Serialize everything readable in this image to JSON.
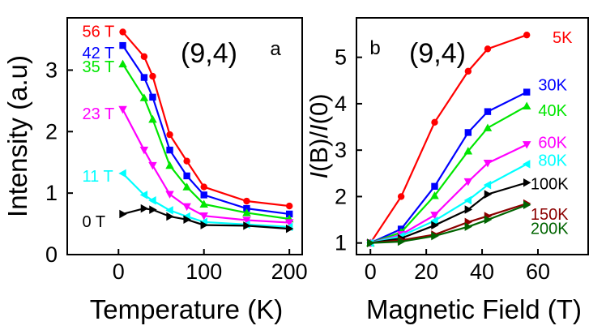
{
  "chart_data": [
    {
      "type": "line",
      "panel_label": "a",
      "annotation": "(9,4)",
      "xlabel": "Temperature (K)",
      "ylabel": "Intensity (a.u)",
      "xlim": [
        -60,
        215
      ],
      "ylim": [
        0,
        3.85
      ],
      "xticks": [
        "0",
        "100",
        "200"
      ],
      "xtick_values": [
        0,
        100,
        200
      ],
      "yticks": [
        "0",
        "1",
        "2",
        "3"
      ],
      "ytick_values": [
        0,
        1,
        2,
        3
      ],
      "grid": false,
      "legend": "inline labels at left end of each series",
      "series": [
        {
          "name": "56 T",
          "color": "#ff0000",
          "marker": "circle",
          "x": [
            5,
            30,
            40,
            60,
            80,
            100,
            150,
            200
          ],
          "y": [
            3.62,
            3.22,
            2.9,
            1.95,
            1.52,
            1.1,
            0.87,
            0.79
          ]
        },
        {
          "name": "42 T",
          "color": "#0000ff",
          "marker": "square",
          "x": [
            5,
            30,
            40,
            60,
            80,
            100,
            150,
            200
          ],
          "y": [
            3.4,
            2.88,
            2.56,
            1.7,
            1.28,
            0.97,
            0.75,
            0.66
          ]
        },
        {
          "name": "35 T",
          "color": "#00e600",
          "marker": "triangle-up",
          "x": [
            5,
            30,
            40,
            60,
            80,
            100,
            150,
            200
          ],
          "y": [
            3.1,
            2.55,
            2.2,
            1.45,
            1.1,
            0.82,
            0.68,
            0.58
          ]
        },
        {
          "name": "23 T",
          "color": "#ff00ff",
          "marker": "triangle-down",
          "x": [
            5,
            30,
            40,
            60,
            80,
            100,
            150,
            200
          ],
          "y": [
            2.36,
            1.7,
            1.45,
            0.98,
            0.78,
            0.63,
            0.56,
            0.52
          ]
        },
        {
          "name": "11 T",
          "color": "#00ffff",
          "marker": "triangle-left",
          "x": [
            5,
            30,
            40,
            60,
            80,
            100,
            150,
            200
          ],
          "y": [
            1.32,
            0.97,
            0.88,
            0.72,
            0.62,
            0.53,
            0.49,
            0.45
          ]
        },
        {
          "name": "0 T",
          "color": "#000000",
          "marker": "triangle-right",
          "x": [
            5,
            30,
            40,
            60,
            80,
            100,
            150,
            200
          ],
          "y": [
            0.66,
            0.75,
            0.73,
            0.62,
            0.57,
            0.48,
            0.47,
            0.42
          ]
        }
      ]
    },
    {
      "type": "line",
      "panel_label": "b",
      "annotation": "(9,4)",
      "xlabel": "Magnetic Field (T)",
      "ylabel": "I(B)/I(0)",
      "ylabel_parts": [
        "I",
        "(B)/",
        "I",
        "(0)"
      ],
      "xlim": [
        -5,
        78
      ],
      "ylim": [
        0.75,
        5.85
      ],
      "xticks": [
        "0",
        "20",
        "40",
        "60"
      ],
      "xtick_values": [
        0,
        20,
        40,
        60
      ],
      "yticks": [
        "1",
        "2",
        "3",
        "4",
        "5"
      ],
      "ytick_values": [
        1,
        2,
        3,
        4,
        5
      ],
      "grid": false,
      "legend": "inline labels at right end of each series",
      "series": [
        {
          "name": "5K",
          "color": "#ff0000",
          "marker": "circle",
          "x": [
            0,
            11,
            23,
            35,
            42,
            56
          ],
          "y": [
            1.0,
            2.0,
            3.6,
            4.7,
            5.18,
            5.48
          ]
        },
        {
          "name": "30K",
          "color": "#0000ff",
          "marker": "square",
          "x": [
            0,
            11,
            23,
            35,
            42,
            56
          ],
          "y": [
            1.0,
            1.3,
            2.22,
            3.38,
            3.83,
            4.25
          ]
        },
        {
          "name": "40K",
          "color": "#00e600",
          "marker": "triangle-up",
          "x": [
            0,
            11,
            23,
            35,
            42,
            56
          ],
          "y": [
            1.0,
            1.23,
            2.02,
            2.98,
            3.48,
            3.95
          ]
        },
        {
          "name": "60K",
          "color": "#ff00ff",
          "marker": "triangle-down",
          "x": [
            0,
            11,
            23,
            35,
            42,
            56
          ],
          "y": [
            1.0,
            1.18,
            1.6,
            2.32,
            2.72,
            3.12
          ]
        },
        {
          "name": "80K",
          "color": "#00ffff",
          "marker": "triangle-left",
          "x": [
            0,
            11,
            23,
            35,
            42,
            56
          ],
          "y": [
            1.0,
            1.15,
            1.48,
            1.92,
            2.25,
            2.7
          ]
        },
        {
          "name": "100K",
          "color": "#000000",
          "marker": "triangle-right",
          "x": [
            0,
            11,
            23,
            35,
            42,
            56
          ],
          "y": [
            1.0,
            1.1,
            1.38,
            1.72,
            2.05,
            2.3
          ]
        },
        {
          "name": "150K",
          "color": "#8b0000",
          "marker": "triangle-right",
          "x": [
            0,
            11,
            23,
            35,
            42,
            56
          ],
          "y": [
            1.0,
            1.06,
            1.18,
            1.45,
            1.58,
            1.85
          ]
        },
        {
          "name": "200K",
          "color": "#006400",
          "marker": "triangle-right",
          "x": [
            0,
            11,
            23,
            35,
            42,
            56
          ],
          "y": [
            1.0,
            1.03,
            1.15,
            1.35,
            1.5,
            1.82
          ]
        }
      ]
    }
  ]
}
